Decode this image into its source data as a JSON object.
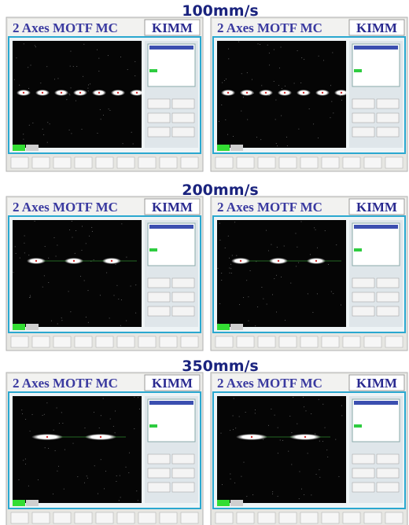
{
  "sections": [
    {
      "speed": "100mm/s",
      "panels": [
        {
          "title": "2 Axes MOTF MC",
          "brand": "KIMM"
        },
        {
          "title": "2 Axes MOTF MC",
          "brand": "KIMM"
        }
      ]
    },
    {
      "speed": "200mm/s",
      "panels": [
        {
          "title": "2 Axes MOTF MC",
          "brand": "KIMM"
        },
        {
          "title": "2 Axes MOTF MC",
          "brand": "KIMM"
        }
      ]
    },
    {
      "speed": "350mm/s",
      "panels": [
        {
          "title": "2 Axes MOTF MC",
          "brand": "KIMM"
        },
        {
          "title": "2 Axes MOTF MC",
          "brand": "KIMM"
        }
      ]
    }
  ]
}
